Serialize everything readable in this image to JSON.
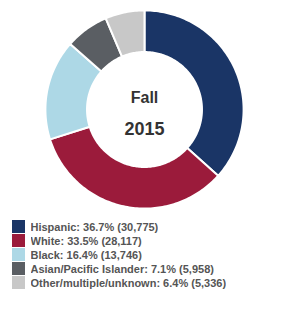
{
  "chart_data": {
    "type": "pie",
    "title": "Fall",
    "subtitle": "2015",
    "categories": [
      "Hispanic: 36.7% (30,775)",
      "White: 33.5% (28,117)",
      "Black: 16.4% (13,746)",
      "Asian/Pacific Islander: 7.1% (5,958)",
      "Other/multiple/unknown: 6.4% (5,336)"
    ],
    "values": [
      36.7,
      33.5,
      16.4,
      7.1,
      6.4
    ],
    "colors": [
      "#1a3566",
      "#9b1b3b",
      "#add8e6",
      "#5a5e63",
      "#c8c8c8"
    ],
    "legend": "bottom"
  }
}
